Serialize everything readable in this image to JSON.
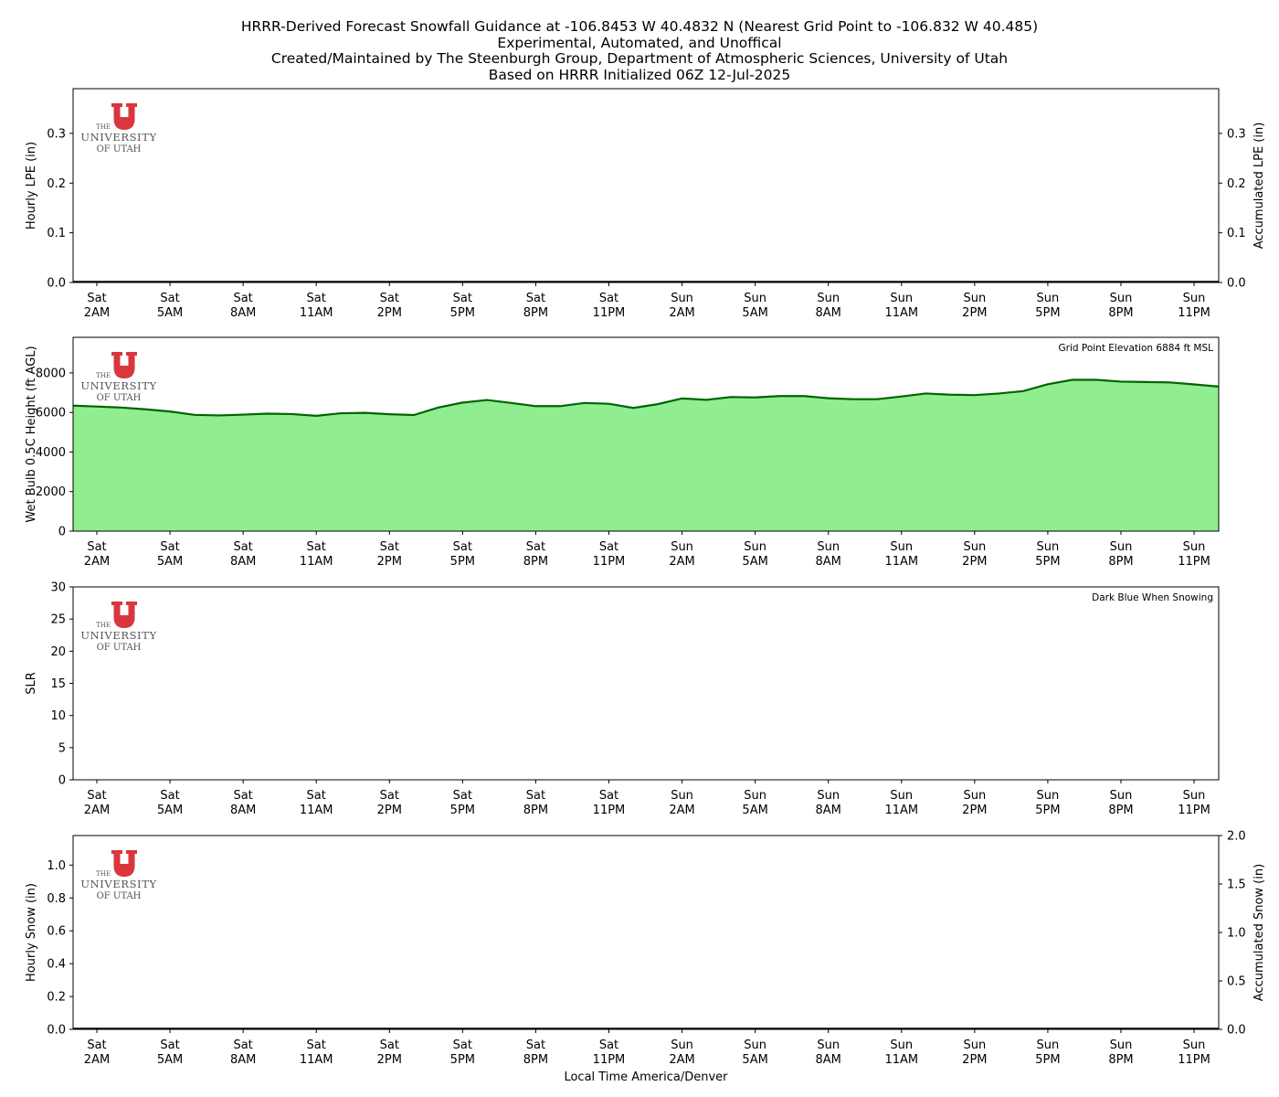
{
  "title_lines": [
    "HRRR-Derived Forecast Snowfall Guidance at -106.8453 W 40.4832 N (Nearest Grid Point to -106.832 W 40.485)",
    "Experimental, Automated, and Unoffical",
    "Created/Maintained by The Steenburgh Group, Department of Atmospheric Sciences, University of Utah",
    "Based on HRRR Initialized 06Z 12-Jul-2025"
  ],
  "logo": {
    "line1": "THE",
    "line2": "UNIVERSITY",
    "line3": "OF UTAH",
    "color": "#d9363e"
  },
  "xlabel": "Local Time America/Denver",
  "time_ticks": [
    [
      "Sat",
      "2AM"
    ],
    [
      "Sat",
      "5AM"
    ],
    [
      "Sat",
      "8AM"
    ],
    [
      "Sat",
      "11AM"
    ],
    [
      "Sat",
      "2PM"
    ],
    [
      "Sat",
      "5PM"
    ],
    [
      "Sat",
      "8PM"
    ],
    [
      "Sat",
      "11PM"
    ],
    [
      "Sun",
      "2AM"
    ],
    [
      "Sun",
      "5AM"
    ],
    [
      "Sun",
      "8AM"
    ],
    [
      "Sun",
      "11AM"
    ],
    [
      "Sun",
      "2PM"
    ],
    [
      "Sun",
      "5PM"
    ],
    [
      "Sun",
      "8PM"
    ],
    [
      "Sun",
      "11PM"
    ]
  ],
  "chart_data": [
    {
      "type": "bar",
      "ylabel": "Hourly LPE (in)",
      "ylabel_right": "Accumulated LPE (in)",
      "ylim": [
        0,
        0.39
      ],
      "yticks": [
        0.0,
        0.1,
        0.2,
        0.3
      ],
      "yticks_right": [
        0.0,
        0.1,
        0.2,
        0.3
      ],
      "values": [
        0,
        0,
        0,
        0,
        0,
        0,
        0,
        0,
        0,
        0,
        0,
        0,
        0,
        0,
        0,
        0,
        0,
        0,
        0,
        0,
        0,
        0,
        0,
        0,
        0,
        0,
        0,
        0,
        0,
        0,
        0,
        0,
        0,
        0,
        0,
        0,
        0,
        0,
        0,
        0,
        0,
        0,
        0,
        0,
        0,
        0,
        0,
        0
      ]
    },
    {
      "type": "area",
      "ylabel": "Wet Bulb 0.5C Height (ft AGL)",
      "ylim": [
        0,
        9800
      ],
      "yticks": [
        0,
        2000,
        4000,
        6000,
        8000
      ],
      "annotation": "Grid Point Elevation 6884 ft MSL",
      "colors": {
        "fill": "#90ee90",
        "line": "#006400"
      },
      "x_hours": [
        0,
        1,
        2,
        3,
        4,
        5,
        6,
        7,
        8,
        9,
        10,
        11,
        12,
        13,
        14,
        15,
        16,
        17,
        18,
        19,
        20,
        21,
        22,
        23,
        24,
        25,
        26,
        27,
        28,
        29,
        30,
        31,
        32,
        33,
        34,
        35,
        36,
        37,
        38,
        39,
        40,
        41,
        42,
        43,
        44,
        45,
        46,
        47
      ],
      "values": [
        6300,
        6250,
        6160,
        6050,
        5880,
        5850,
        5890,
        5940,
        5920,
        5830,
        5960,
        5980,
        5910,
        5870,
        6250,
        6500,
        6630,
        6480,
        6320,
        6320,
        6480,
        6440,
        6230,
        6420,
        6710,
        6640,
        6780,
        6760,
        6830,
        6830,
        6720,
        6670,
        6670,
        6810,
        6960,
        6900,
        6880,
        6960,
        7080,
        7430,
        7650,
        7650,
        7560,
        7540,
        7520,
        7420,
        7310,
        7150
      ]
    },
    {
      "type": "line",
      "ylabel": "SLR",
      "ylim": [
        0,
        30
      ],
      "yticks": [
        0,
        5,
        10,
        15,
        20,
        25,
        30
      ],
      "annotation": "Dark Blue When Snowing",
      "values": []
    },
    {
      "type": "bar",
      "ylabel": "Hourly Snow (in)",
      "ylabel_right": "Accumulated Snow (in)",
      "ylim": [
        0,
        1.18
      ],
      "yticks": [
        0.0,
        0.2,
        0.4,
        0.6,
        0.8,
        1.0
      ],
      "yticks_right": [
        0.0,
        0.5,
        1.0,
        1.5,
        2.0
      ],
      "ylim_right": [
        0,
        2.0
      ],
      "values": [
        0,
        0,
        0,
        0,
        0,
        0,
        0,
        0,
        0,
        0,
        0,
        0,
        0,
        0,
        0,
        0,
        0,
        0,
        0,
        0,
        0,
        0,
        0,
        0,
        0,
        0,
        0,
        0,
        0,
        0,
        0,
        0,
        0,
        0,
        0,
        0,
        0,
        0,
        0,
        0,
        0,
        0,
        0,
        0,
        0,
        0,
        0,
        0
      ]
    }
  ]
}
